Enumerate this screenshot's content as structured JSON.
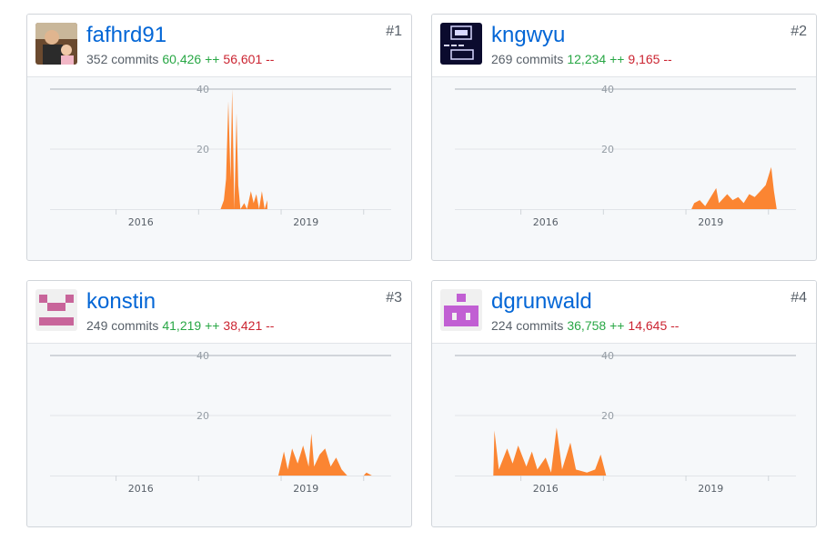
{
  "colors": {
    "link": "#0366d6",
    "additions": "#28a745",
    "deletions": "#cb2431",
    "area": "#fb8532",
    "grid": "#e1e4e8"
  },
  "chart_axis": {
    "y_ticks": [
      "20",
      "40"
    ],
    "x_ticks": [
      "2016",
      "2019"
    ]
  },
  "contributors": [
    {
      "username": "fafhrd91",
      "rank": "#1",
      "commits_text": "352 commits",
      "additions_text": "60,426 ++",
      "deletions_text": "56,601 --",
      "avatar": "photo-avatar"
    },
    {
      "username": "kngwyu",
      "rank": "#2",
      "commits_text": "269 commits",
      "additions_text": "12,234 ++",
      "deletions_text": "9,165 --",
      "avatar": "ascii-art-avatar"
    },
    {
      "username": "konstin",
      "rank": "#3",
      "commits_text": "249 commits",
      "additions_text": "41,219 ++",
      "deletions_text": "38,421 --",
      "avatar": "identicon-avatar"
    },
    {
      "username": "dgrunwald",
      "rank": "#4",
      "commits_text": "224 commits",
      "additions_text": "36,758 ++",
      "deletions_text": "14,645 --",
      "avatar": "identicon-avatar"
    }
  ],
  "chart_data": [
    {
      "type": "area",
      "series": [
        {
          "name": "",
          "points": [
            [
              2017.4,
              0
            ],
            [
              2017.46,
              3
            ],
            [
              2017.5,
              10
            ],
            [
              2017.54,
              36
            ],
            [
              2017.58,
              10
            ],
            [
              2017.61,
              40
            ],
            [
              2017.65,
              0
            ],
            [
              2017.69,
              32
            ],
            [
              2017.72,
              8
            ],
            [
              2017.76,
              0
            ],
            [
              2017.83,
              2
            ],
            [
              2017.88,
              0
            ],
            [
              2017.95,
              6
            ],
            [
              2018.0,
              2
            ],
            [
              2018.05,
              5
            ],
            [
              2018.1,
              0
            ],
            [
              2018.15,
              6
            ],
            [
              2018.2,
              0
            ],
            [
              2018.25,
              3
            ]
          ]
        }
      ],
      "ylim": [
        0,
        40
      ],
      "x_ticks": [
        "2016",
        "2019"
      ],
      "y_ticks": [
        "20",
        "40"
      ],
      "grid": true
    },
    {
      "type": "area",
      "series": [
        {
          "name": "",
          "points": [
            [
              2018.6,
              0
            ],
            [
              2018.65,
              2
            ],
            [
              2018.75,
              3
            ],
            [
              2018.85,
              1
            ],
            [
              2018.95,
              4
            ],
            [
              2019.05,
              7
            ],
            [
              2019.1,
              2
            ],
            [
              2019.25,
              5
            ],
            [
              2019.35,
              3
            ],
            [
              2019.45,
              4
            ],
            [
              2019.55,
              2
            ],
            [
              2019.65,
              5
            ],
            [
              2019.75,
              4
            ],
            [
              2019.85,
              6
            ],
            [
              2019.95,
              8
            ],
            [
              2020.05,
              14
            ],
            [
              2020.1,
              6
            ],
            [
              2020.15,
              0
            ]
          ]
        }
      ],
      "ylim": [
        0,
        40
      ],
      "x_ticks": [
        "2016",
        "2019"
      ],
      "y_ticks": [
        "20",
        "40"
      ],
      "grid": true
    },
    {
      "type": "area",
      "series": [
        {
          "name": "",
          "points": [
            [
              2018.45,
              0
            ],
            [
              2018.55,
              8
            ],
            [
              2018.62,
              2
            ],
            [
              2018.7,
              9
            ],
            [
              2018.8,
              4
            ],
            [
              2018.9,
              10
            ],
            [
              2019.0,
              3
            ],
            [
              2019.05,
              14
            ],
            [
              2019.1,
              3
            ],
            [
              2019.2,
              7
            ],
            [
              2019.3,
              9
            ],
            [
              2019.4,
              3
            ],
            [
              2019.5,
              6
            ],
            [
              2019.6,
              2
            ],
            [
              2019.7,
              0
            ],
            [
              2020.0,
              0
            ],
            [
              2020.05,
              1
            ],
            [
              2020.15,
              0
            ]
          ]
        }
      ],
      "ylim": [
        0,
        40
      ],
      "x_ticks": [
        "2016",
        "2019"
      ],
      "y_ticks": [
        "20",
        "40"
      ],
      "grid": true
    },
    {
      "type": "area",
      "series": [
        {
          "name": "",
          "points": [
            [
              2015.0,
              0
            ],
            [
              2015.02,
              15
            ],
            [
              2015.1,
              2
            ],
            [
              2015.25,
              9
            ],
            [
              2015.35,
              4
            ],
            [
              2015.45,
              10
            ],
            [
              2015.6,
              3
            ],
            [
              2015.7,
              8
            ],
            [
              2015.8,
              2
            ],
            [
              2015.95,
              6
            ],
            [
              2016.05,
              1
            ],
            [
              2016.15,
              16
            ],
            [
              2016.25,
              2
            ],
            [
              2016.4,
              11
            ],
            [
              2016.5,
              2
            ],
            [
              2016.7,
              1
            ],
            [
              2016.85,
              2
            ],
            [
              2016.95,
              7
            ],
            [
              2017.05,
              0
            ]
          ]
        }
      ],
      "ylim": [
        0,
        40
      ],
      "x_ticks": [
        "2016",
        "2019"
      ],
      "y_ticks": [
        "20",
        "40"
      ],
      "grid": true
    }
  ]
}
